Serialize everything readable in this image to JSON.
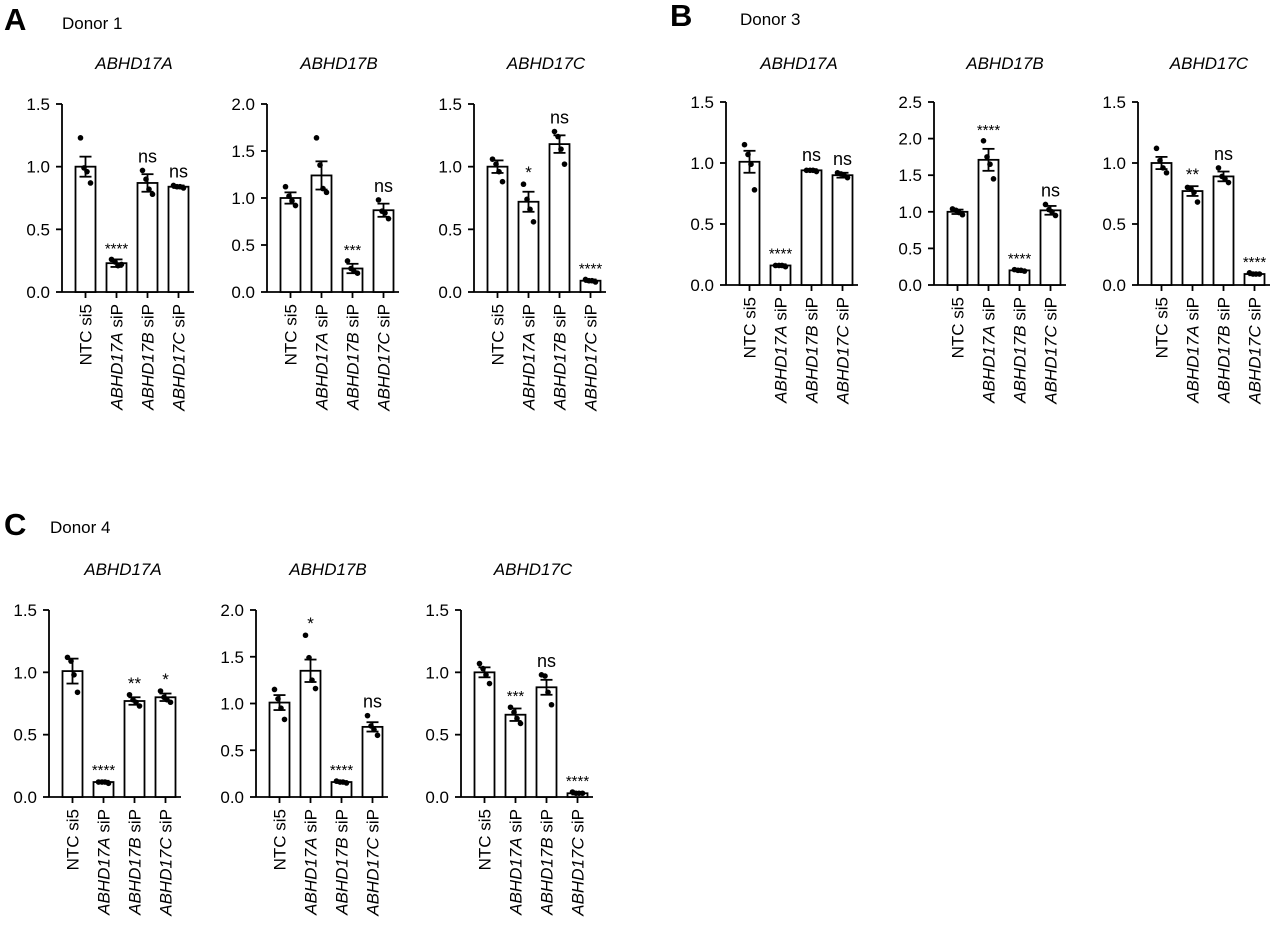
{
  "panels": [
    {
      "letter": "A",
      "donor": "Donor 1",
      "charts": [
        {
          "title": "ABHD17A",
          "ylim": [
            0,
            1.5
          ],
          "yticks": [
            "0.0",
            "0.5",
            "1.0",
            "1.5"
          ],
          "ytick_values": [
            0,
            0.5,
            1.0,
            1.5
          ]
        },
        {
          "title": "ABHD17B",
          "ylim": [
            0,
            2.0
          ],
          "yticks": [
            "0.0",
            "0.5",
            "1.0",
            "1.5",
            "2.0"
          ],
          "ytick_values": [
            0,
            0.5,
            1.0,
            1.5,
            2.0
          ]
        },
        {
          "title": "ABHD17C",
          "ylim": [
            0,
            1.5
          ],
          "yticks": [
            "0.0",
            "0.5",
            "1.0",
            "1.5"
          ],
          "ytick_values": [
            0,
            0.5,
            1.0,
            1.5
          ]
        }
      ]
    },
    {
      "letter": "B",
      "donor": "Donor 3",
      "charts": [
        {
          "title": "ABHD17A",
          "ylim": [
            0,
            1.5
          ],
          "yticks": [
            "0.0",
            "0.5",
            "1.0",
            "1.5"
          ],
          "ytick_values": [
            0,
            0.5,
            1.0,
            1.5
          ]
        },
        {
          "title": "ABHD17B",
          "ylim": [
            0,
            2.5
          ],
          "yticks": [
            "0.0",
            "0.5",
            "1.0",
            "1.5",
            "2.0",
            "2.5"
          ],
          "ytick_values": [
            0,
            0.5,
            1.0,
            1.5,
            2.0,
            2.5
          ]
        },
        {
          "title": "ABHD17C",
          "ylim": [
            0,
            1.5
          ],
          "yticks": [
            "0.0",
            "0.5",
            "1.0",
            "1.5"
          ],
          "ytick_values": [
            0,
            0.5,
            1.0,
            1.5
          ]
        }
      ]
    },
    {
      "letter": "C",
      "donor": "Donor 4",
      "charts": [
        {
          "title": "ABHD17A",
          "ylim": [
            0,
            1.5
          ],
          "yticks": [
            "0.0",
            "0.5",
            "1.0",
            "1.5"
          ],
          "ytick_values": [
            0,
            0.5,
            1.0,
            1.5
          ]
        },
        {
          "title": "ABHD17B",
          "ylim": [
            0,
            2.0
          ],
          "yticks": [
            "0.0",
            "0.5",
            "1.0",
            "1.5",
            "2.0"
          ],
          "ytick_values": [
            0,
            0.5,
            1.0,
            1.5,
            2.0
          ]
        },
        {
          "title": "ABHD17C",
          "ylim": [
            0,
            1.5
          ],
          "yticks": [
            "0.0",
            "0.5",
            "1.0",
            "1.5"
          ],
          "ytick_values": [
            0,
            0.5,
            1.0,
            1.5
          ]
        }
      ]
    }
  ],
  "chart_data": [
    {
      "panel": "A",
      "type": "bar",
      "title": "ABHD17A",
      "xlabel": "",
      "ylabel": "",
      "ylim": [
        0,
        1.5
      ],
      "categories": [
        "NTC si5",
        "ABHD17A siP",
        "ABHD17B siP",
        "ABHD17C siP"
      ],
      "values": [
        1.0,
        0.23,
        0.87,
        0.84
      ],
      "errors": [
        0.08,
        0.03,
        0.07,
        0.01
      ],
      "points": [
        [
          1.23,
          0.99,
          0.96,
          0.87
        ],
        [
          0.26,
          0.24,
          0.21,
          0.22
        ],
        [
          0.97,
          0.9,
          0.82,
          0.78
        ],
        [
          0.85,
          0.84,
          0.84,
          0.83
        ]
      ],
      "significance": [
        "",
        "****",
        "ns",
        "ns"
      ]
    },
    {
      "panel": "A",
      "type": "bar",
      "title": "ABHD17B",
      "xlabel": "",
      "ylabel": "",
      "ylim": [
        0,
        2.0
      ],
      "categories": [
        "NTC si5",
        "ABHD17A siP",
        "ABHD17B siP",
        "ABHD17C siP"
      ],
      "values": [
        1.0,
        1.24,
        0.25,
        0.87
      ],
      "errors": [
        0.06,
        0.15,
        0.05,
        0.07
      ],
      "points": [
        [
          1.12,
          1.02,
          0.97,
          0.92
        ],
        [
          1.64,
          1.35,
          1.1,
          1.06
        ],
        [
          0.33,
          0.25,
          0.22,
          0.2
        ],
        [
          0.98,
          0.86,
          0.84,
          0.78
        ]
      ],
      "significance": [
        "",
        "",
        "***",
        "ns"
      ]
    },
    {
      "panel": "A",
      "type": "bar",
      "title": "ABHD17C",
      "xlabel": "",
      "ylabel": "",
      "ylim": [
        0,
        1.5
      ],
      "categories": [
        "NTC si5",
        "ABHD17A siP",
        "ABHD17B siP",
        "ABHD17C siP"
      ],
      "values": [
        1.0,
        0.72,
        1.18,
        0.09
      ],
      "errors": [
        0.05,
        0.08,
        0.07,
        0.01
      ],
      "points": [
        [
          1.06,
          1.02,
          0.96,
          0.88
        ],
        [
          0.86,
          0.74,
          0.66,
          0.56
        ],
        [
          1.28,
          1.24,
          1.14,
          1.02
        ],
        [
          0.1,
          0.09,
          0.09,
          0.08
        ]
      ],
      "significance": [
        "",
        "*",
        "ns",
        "****"
      ]
    },
    {
      "panel": "B",
      "type": "bar",
      "title": "ABHD17A",
      "xlabel": "",
      "ylabel": "",
      "ylim": [
        0,
        1.5
      ],
      "categories": [
        "NTC si5",
        "ABHD17A siP",
        "ABHD17B siP",
        "ABHD17C siP"
      ],
      "values": [
        1.01,
        0.16,
        0.94,
        0.9
      ],
      "errors": [
        0.09,
        0.01,
        0.01,
        0.02
      ],
      "points": [
        [
          1.15,
          1.07,
          0.99,
          0.78
        ],
        [
          0.16,
          0.16,
          0.16,
          0.15
        ],
        [
          0.94,
          0.94,
          0.94,
          0.93
        ],
        [
          0.92,
          0.91,
          0.9,
          0.88
        ]
      ],
      "significance": [
        "",
        "****",
        "ns",
        "ns"
      ]
    },
    {
      "panel": "B",
      "type": "bar",
      "title": "ABHD17B",
      "xlabel": "",
      "ylabel": "",
      "ylim": [
        0,
        2.5
      ],
      "categories": [
        "NTC si5",
        "ABHD17A siP",
        "ABHD17B siP",
        "ABHD17C siP"
      ],
      "values": [
        1.0,
        1.71,
        0.2,
        1.02
      ],
      "errors": [
        0.03,
        0.15,
        0.01,
        0.06
      ],
      "points": [
        [
          1.04,
          1.02,
          0.99,
          0.96
        ],
        [
          1.97,
          1.75,
          1.65,
          1.45
        ],
        [
          0.21,
          0.2,
          0.2,
          0.19
        ],
        [
          1.1,
          1.03,
          1.0,
          0.95
        ]
      ],
      "significance": [
        "",
        "****",
        "****",
        "ns"
      ]
    },
    {
      "panel": "B",
      "type": "bar",
      "title": "ABHD17C",
      "xlabel": "",
      "ylabel": "",
      "ylim": [
        0,
        1.5
      ],
      "categories": [
        "NTC si5",
        "ABHD17A siP",
        "ABHD17B siP",
        "ABHD17C siP"
      ],
      "values": [
        1.0,
        0.77,
        0.89,
        0.09
      ],
      "errors": [
        0.05,
        0.04,
        0.04,
        0.01
      ],
      "points": [
        [
          1.12,
          1.02,
          0.96,
          0.92
        ],
        [
          0.8,
          0.79,
          0.76,
          0.68
        ],
        [
          0.96,
          0.89,
          0.87,
          0.84
        ],
        [
          0.1,
          0.09,
          0.09,
          0.09
        ]
      ],
      "significance": [
        "",
        "**",
        "ns",
        "****"
      ]
    },
    {
      "panel": "C",
      "type": "bar",
      "title": "ABHD17A",
      "xlabel": "",
      "ylabel": "",
      "ylim": [
        0,
        1.5
      ],
      "categories": [
        "NTC si5",
        "ABHD17A siP",
        "ABHD17B siP",
        "ABHD17C siP"
      ],
      "values": [
        1.01,
        0.12,
        0.77,
        0.8
      ],
      "errors": [
        0.1,
        0.01,
        0.03,
        0.03
      ],
      "points": [
        [
          1.12,
          1.09,
          0.98,
          0.84
        ],
        [
          0.12,
          0.12,
          0.12,
          0.11
        ],
        [
          0.82,
          0.78,
          0.76,
          0.73
        ],
        [
          0.85,
          0.8,
          0.78,
          0.76
        ]
      ],
      "significance": [
        "",
        "****",
        "**",
        "*"
      ]
    },
    {
      "panel": "C",
      "type": "bar",
      "title": "ABHD17B",
      "xlabel": "",
      "ylabel": "",
      "ylim": [
        0,
        2.0
      ],
      "categories": [
        "NTC si5",
        "ABHD17A siP",
        "ABHD17B siP",
        "ABHD17C siP"
      ],
      "values": [
        1.01,
        1.35,
        0.16,
        0.75
      ],
      "errors": [
        0.08,
        0.12,
        0.01,
        0.05
      ],
      "points": [
        [
          1.15,
          1.05,
          0.95,
          0.83
        ],
        [
          1.73,
          1.49,
          1.25,
          1.16
        ],
        [
          0.17,
          0.16,
          0.16,
          0.15
        ],
        [
          0.87,
          0.76,
          0.72,
          0.66
        ]
      ],
      "significance": [
        "",
        "*",
        "****",
        "ns"
      ]
    },
    {
      "panel": "C",
      "type": "bar",
      "title": "ABHD17C",
      "xlabel": "",
      "ylabel": "",
      "ylim": [
        0,
        1.5
      ],
      "categories": [
        "NTC si5",
        "ABHD17A siP",
        "ABHD17B siP",
        "ABHD17C siP"
      ],
      "values": [
        1.0,
        0.66,
        0.88,
        0.03
      ],
      "errors": [
        0.04,
        0.05,
        0.06,
        0.01
      ],
      "points": [
        [
          1.07,
          1.03,
          0.98,
          0.91
        ],
        [
          0.72,
          0.68,
          0.63,
          0.59
        ],
        [
          0.98,
          0.97,
          0.84,
          0.74
        ],
        [
          0.04,
          0.03,
          0.03,
          0.03
        ]
      ],
      "significance": [
        "",
        "***",
        "ns",
        "****"
      ]
    }
  ]
}
